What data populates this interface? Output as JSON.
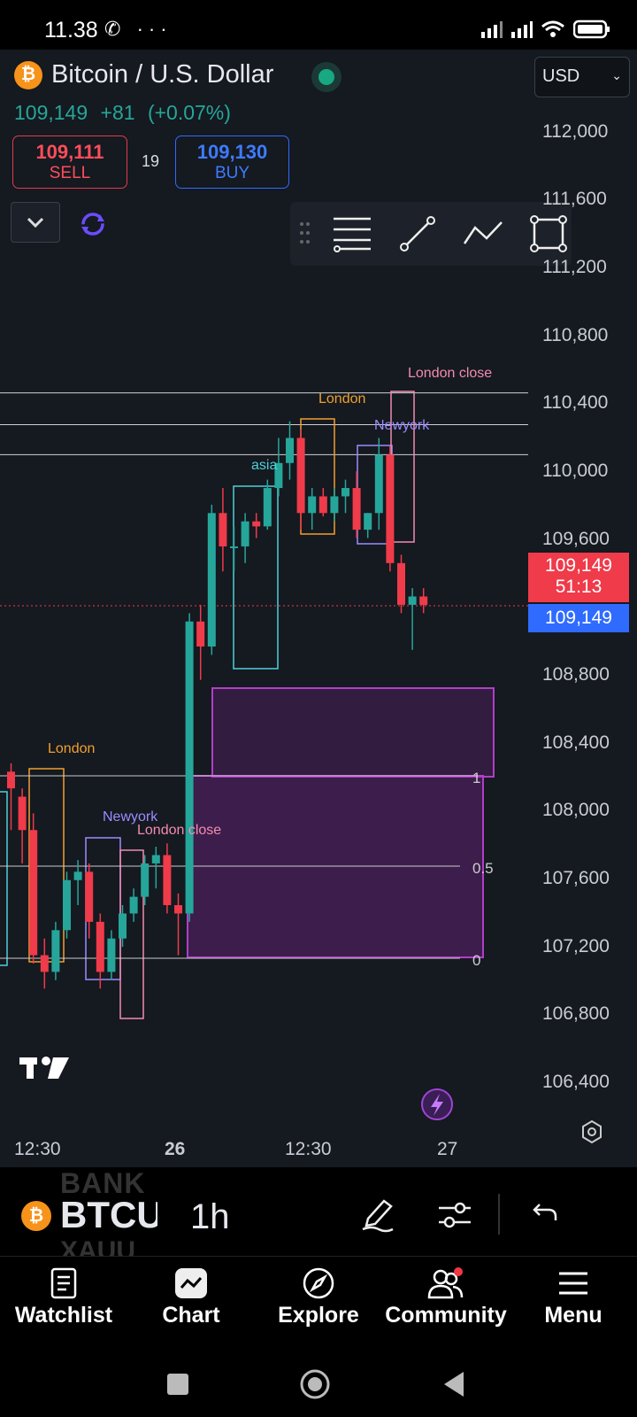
{
  "status_bar": {
    "time": "11.38",
    "extra": "···"
  },
  "header": {
    "symbol_title": "Bitcoin / U.S. Dollar",
    "coin_glyph": "₿",
    "last_price": "109,149",
    "change": "+81",
    "change_pct": "(+0.07%)",
    "currency": "USD"
  },
  "trade": {
    "sell_value": "109,111",
    "sell_label": "SELL",
    "spread": "19",
    "buy_value": "109,130",
    "buy_label": "BUY"
  },
  "y_axis": [
    "112,000",
    "111,600",
    "111,200",
    "110,800",
    "110,400",
    "110,000",
    "109,600",
    "108,800",
    "108,400",
    "108,000",
    "107,600",
    "107,200",
    "106,800",
    "106,400"
  ],
  "price_tag": {
    "price": "109,149",
    "countdown": "51:13",
    "blue_price": "109,149"
  },
  "x_axis": [
    "12:30",
    "26",
    "12:30",
    "27"
  ],
  "annotations": {
    "london_top": "London",
    "london_close_top": "London close",
    "newyork_top": "Newyork",
    "asia": "asia",
    "london_left": "London",
    "newyork_left": "Newyork",
    "london_close_left": "London close",
    "fib_1": "1",
    "fib_05": "0.5",
    "fib_0": "0"
  },
  "symbol_bar": {
    "ghost_top": "BANK",
    "name": "BTCUSD",
    "ghost_bottom": "XAUU",
    "interval": "1h"
  },
  "nav": {
    "watchlist": "Watchlist",
    "chart": "Chart",
    "explore": "Explore",
    "community": "Community",
    "menu": "Menu"
  },
  "colors": {
    "up": "#26a69a",
    "down": "#ef3b4a",
    "background": "#151920",
    "fvg": "#9c27b0"
  },
  "chart_data": {
    "type": "candlestick",
    "timeframe": "1h",
    "ylim": [
      106200,
      112200
    ],
    "candles": [
      {
        "o": 108150,
        "h": 108200,
        "l": 107800,
        "c": 108050
      },
      {
        "o": 108000,
        "h": 108050,
        "l": 107600,
        "c": 107800
      },
      {
        "o": 107800,
        "h": 107900,
        "l": 107000,
        "c": 107050
      },
      {
        "o": 107050,
        "h": 107150,
        "l": 106850,
        "c": 106950
      },
      {
        "o": 106950,
        "h": 107250,
        "l": 106900,
        "c": 107200
      },
      {
        "o": 107200,
        "h": 107550,
        "l": 107150,
        "c": 107500
      },
      {
        "o": 107500,
        "h": 107620,
        "l": 107350,
        "c": 107550
      },
      {
        "o": 107550,
        "h": 107600,
        "l": 107150,
        "c": 107250
      },
      {
        "o": 107250,
        "h": 107300,
        "l": 106850,
        "c": 106950
      },
      {
        "o": 106950,
        "h": 107200,
        "l": 106900,
        "c": 107150
      },
      {
        "o": 107150,
        "h": 107350,
        "l": 107100,
        "c": 107300
      },
      {
        "o": 107300,
        "h": 107450,
        "l": 107250,
        "c": 107400
      },
      {
        "o": 107400,
        "h": 107650,
        "l": 107350,
        "c": 107600
      },
      {
        "o": 107600,
        "h": 107700,
        "l": 107450,
        "c": 107650
      },
      {
        "o": 107650,
        "h": 107720,
        "l": 107300,
        "c": 107350
      },
      {
        "o": 107350,
        "h": 107420,
        "l": 107050,
        "c": 107300
      },
      {
        "o": 107300,
        "h": 109100,
        "l": 107250,
        "c": 109050
      },
      {
        "o": 109050,
        "h": 109150,
        "l": 108700,
        "c": 108900
      },
      {
        "o": 108900,
        "h": 109750,
        "l": 108850,
        "c": 109700
      },
      {
        "o": 109700,
        "h": 109850,
        "l": 109350,
        "c": 109500
      },
      {
        "o": 109500,
        "h": 109620,
        "l": 109350,
        "c": 109500
      },
      {
        "o": 109500,
        "h": 109700,
        "l": 109400,
        "c": 109650
      },
      {
        "o": 109650,
        "h": 109700,
        "l": 109550,
        "c": 109620
      },
      {
        "o": 109620,
        "h": 109900,
        "l": 109600,
        "c": 109850
      },
      {
        "o": 109850,
        "h": 110150,
        "l": 109800,
        "c": 110000
      },
      {
        "o": 110000,
        "h": 110250,
        "l": 109900,
        "c": 110150
      },
      {
        "o": 110150,
        "h": 110200,
        "l": 109600,
        "c": 109700
      },
      {
        "o": 109700,
        "h": 109850,
        "l": 109600,
        "c": 109800
      },
      {
        "o": 109800,
        "h": 109850,
        "l": 109680,
        "c": 109700
      },
      {
        "o": 109700,
        "h": 109850,
        "l": 109650,
        "c": 109800
      },
      {
        "o": 109800,
        "h": 109900,
        "l": 109700,
        "c": 109850
      },
      {
        "o": 109850,
        "h": 109950,
        "l": 109550,
        "c": 109600
      },
      {
        "o": 109600,
        "h": 109700,
        "l": 109550,
        "c": 109700
      },
      {
        "o": 109700,
        "h": 110150,
        "l": 109600,
        "c": 110050
      },
      {
        "o": 110050,
        "h": 110100,
        "l": 109350,
        "c": 109400
      },
      {
        "o": 109400,
        "h": 109450,
        "l": 109100,
        "c": 109150
      },
      {
        "o": 109150,
        "h": 109250,
        "l": 108880,
        "c": 109200
      },
      {
        "o": 109200,
        "h": 109250,
        "l": 109100,
        "c": 109149
      }
    ],
    "horizontal_lines": [
      110420,
      110230,
      110050
    ],
    "last_price": 109149
  }
}
